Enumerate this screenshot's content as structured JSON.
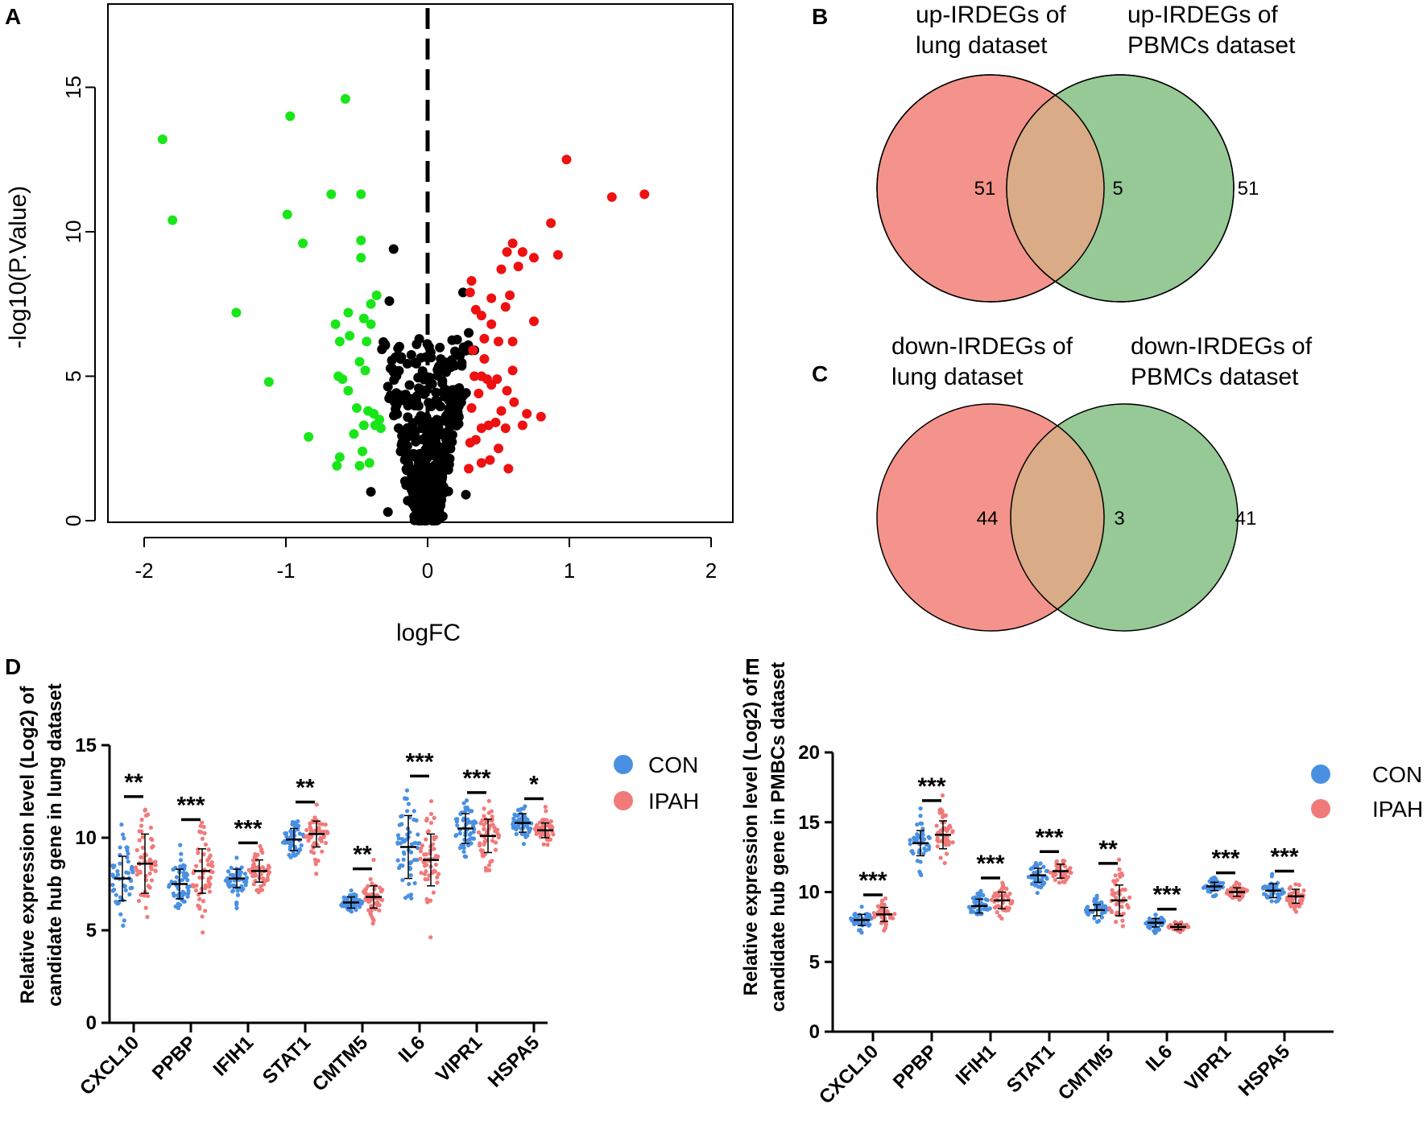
{
  "panels": {
    "A": "A",
    "B": "B",
    "C": "C",
    "D": "D",
    "E": "E"
  },
  "chart_data": [
    {
      "id": "A",
      "type": "scatter",
      "xlabel": "logFC",
      "ylabel": "-log10(P.Value)",
      "xlim": [
        -2.2,
        2.2
      ],
      "ylim": [
        0,
        18
      ],
      "xticks": [
        "-2",
        "-1",
        "0",
        "1",
        "2"
      ],
      "yticks": [
        "0",
        "5",
        "10",
        "15"
      ],
      "threshold_x": 0,
      "colors": {
        "down": "#19e619",
        "up": "#ee1111",
        "ns": "#000000"
      },
      "down_points": [
        [
          -1.87,
          13.2
        ],
        [
          -1.8,
          10.4
        ],
        [
          -0.97,
          14.0
        ],
        [
          -0.58,
          14.6
        ],
        [
          -0.68,
          11.3
        ],
        [
          -0.47,
          11.3
        ],
        [
          -0.99,
          10.6
        ],
        [
          -0.88,
          9.6
        ],
        [
          -1.35,
          7.2
        ],
        [
          -1.12,
          4.8
        ],
        [
          -0.84,
          2.9
        ],
        [
          -0.62,
          2.2
        ],
        [
          -0.47,
          9.7
        ],
        [
          -0.47,
          9.1
        ],
        [
          -0.36,
          7.8
        ],
        [
          -0.4,
          7.5
        ],
        [
          -0.65,
          6.8
        ],
        [
          -0.56,
          7.2
        ],
        [
          -0.45,
          7.0
        ],
        [
          -0.55,
          6.4
        ],
        [
          -0.62,
          6.2
        ],
        [
          -0.43,
          6.2
        ],
        [
          -0.4,
          6.8
        ],
        [
          -0.63,
          5.0
        ],
        [
          -0.6,
          4.9
        ],
        [
          -0.48,
          5.5
        ],
        [
          -0.44,
          5.2
        ],
        [
          -0.56,
          4.5
        ],
        [
          -0.5,
          3.9
        ],
        [
          -0.42,
          3.8
        ],
        [
          -0.45,
          3.3
        ],
        [
          -0.52,
          3.0
        ],
        [
          -0.46,
          2.4
        ],
        [
          -0.38,
          3.7
        ],
        [
          -0.37,
          3.3
        ],
        [
          -0.33,
          3.2
        ],
        [
          -0.64,
          1.9
        ],
        [
          -0.48,
          1.9
        ],
        [
          -0.41,
          2.0
        ],
        [
          -0.34,
          3.5
        ]
      ],
      "up_points": [
        [
          1.53,
          11.3
        ],
        [
          1.3,
          11.2
        ],
        [
          0.98,
          12.5
        ],
        [
          0.87,
          10.3
        ],
        [
          0.92,
          9.2
        ],
        [
          0.6,
          9.6
        ],
        [
          0.56,
          9.3
        ],
        [
          0.67,
          9.3
        ],
        [
          0.52,
          8.7
        ],
        [
          0.64,
          8.8
        ],
        [
          0.75,
          9.1
        ],
        [
          0.31,
          8.3
        ],
        [
          0.3,
          7.9
        ],
        [
          0.45,
          7.7
        ],
        [
          0.58,
          7.8
        ],
        [
          0.55,
          7.4
        ],
        [
          0.34,
          7.3
        ],
        [
          0.38,
          7.1
        ],
        [
          0.45,
          6.8
        ],
        [
          0.75,
          6.9
        ],
        [
          0.4,
          6.3
        ],
        [
          0.5,
          6.2
        ],
        [
          0.6,
          6.2
        ],
        [
          0.32,
          5.9
        ],
        [
          0.4,
          5.6
        ],
        [
          0.6,
          5.2
        ],
        [
          0.33,
          5.0
        ],
        [
          0.38,
          5.0
        ],
        [
          0.42,
          4.9
        ],
        [
          0.49,
          4.9
        ],
        [
          0.45,
          4.7
        ],
        [
          0.56,
          4.5
        ],
        [
          0.36,
          4.4
        ],
        [
          0.61,
          4.1
        ],
        [
          0.31,
          3.9
        ],
        [
          0.52,
          3.8
        ],
        [
          0.7,
          3.7
        ],
        [
          0.8,
          3.6
        ],
        [
          0.48,
          3.4
        ],
        [
          0.43,
          3.3
        ],
        [
          0.55,
          3.2
        ],
        [
          0.38,
          3.2
        ],
        [
          0.67,
          3.3
        ],
        [
          0.34,
          2.8
        ],
        [
          0.3,
          2.7
        ],
        [
          0.5,
          2.5
        ],
        [
          0.38,
          2.0
        ],
        [
          0.57,
          1.8
        ],
        [
          0.29,
          1.8
        ],
        [
          0.44,
          2.1
        ]
      ]
    },
    {
      "id": "B",
      "type": "venn",
      "left_title": [
        "up-IRDEGs of",
        "lung dataset"
      ],
      "right_title": [
        "up-IRDEGs of",
        "PBMCs dataset"
      ],
      "left_only": "51",
      "overlap": "5",
      "right_only": "51",
      "colors": {
        "left": "#f4938b",
        "right": "#96c996",
        "overlap": "#d9ab87"
      }
    },
    {
      "id": "C",
      "type": "venn",
      "left_title": [
        "down-IRDEGs of",
        "lung dataset"
      ],
      "right_title": [
        "down-IRDEGs of",
        "PBMCs dataset"
      ],
      "left_only": "44",
      "overlap": "3",
      "right_only": "41",
      "colors": {
        "left": "#f4938b",
        "right": "#96c996",
        "overlap": "#d9ab87"
      }
    },
    {
      "id": "D",
      "type": "scatter",
      "ylabel": [
        "Relative expression level (Log2) of",
        "candidate hub gene in lung dataset"
      ],
      "ylim": [
        0,
        15
      ],
      "yticks": [
        "0",
        "5",
        "10",
        "15"
      ],
      "categories": [
        "CXCL10",
        "PPBP",
        "IFIH1",
        "STAT1",
        "CMTM5",
        "IL6",
        "VIPR1",
        "HSPA5"
      ],
      "legend": [
        "CON",
        "IPAH"
      ],
      "legend_colors": [
        "#4a90e2",
        "#f07a7a"
      ],
      "significance": [
        "**",
        "***",
        "***",
        "**",
        "**",
        "***",
        "***",
        "*"
      ],
      "series": [
        {
          "name": "CON",
          "mean": [
            7.8,
            7.5,
            7.8,
            9.9,
            6.5,
            9.5,
            10.5,
            10.8
          ],
          "sd": [
            1.2,
            0.8,
            0.5,
            0.6,
            0.3,
            1.7,
            0.8,
            0.5
          ]
        },
        {
          "name": "IPAH",
          "mean": [
            8.6,
            8.2,
            8.2,
            10.2,
            6.8,
            8.8,
            10.1,
            10.4
          ],
          "sd": [
            1.6,
            1.2,
            0.6,
            0.7,
            0.6,
            1.4,
            0.9,
            0.4
          ]
        }
      ]
    },
    {
      "id": "E",
      "type": "scatter",
      "ylabel": [
        "Relative expression level (Log2) of",
        "candidate hub gene in PMBCs dataset"
      ],
      "ylim": [
        0,
        20
      ],
      "yticks": [
        "0",
        "5",
        "10",
        "15",
        "20"
      ],
      "categories": [
        "CXCL10",
        "PPBP",
        "IFIH1",
        "STAT1",
        "CMTM5",
        "IL6",
        "VIPR1",
        "HSPA5"
      ],
      "legend": [
        "CON",
        "IPAH"
      ],
      "legend_colors": [
        "#4a90e2",
        "#f07a7a"
      ],
      "significance": [
        "***",
        "***",
        "***",
        "***",
        "**",
        "***",
        "***",
        "***"
      ],
      "series": [
        {
          "name": "CON",
          "mean": [
            8.0,
            13.5,
            9.0,
            11.2,
            8.7,
            7.8,
            10.4,
            10.1
          ],
          "sd": [
            0.4,
            0.9,
            0.5,
            0.5,
            0.4,
            0.3,
            0.3,
            0.5
          ]
        },
        {
          "name": "IPAH",
          "mean": [
            8.4,
            14.1,
            9.4,
            11.5,
            9.4,
            7.5,
            10.0,
            9.7
          ],
          "sd": [
            0.5,
            1.0,
            0.6,
            0.5,
            1.1,
            0.2,
            0.3,
            0.5
          ]
        }
      ]
    }
  ]
}
